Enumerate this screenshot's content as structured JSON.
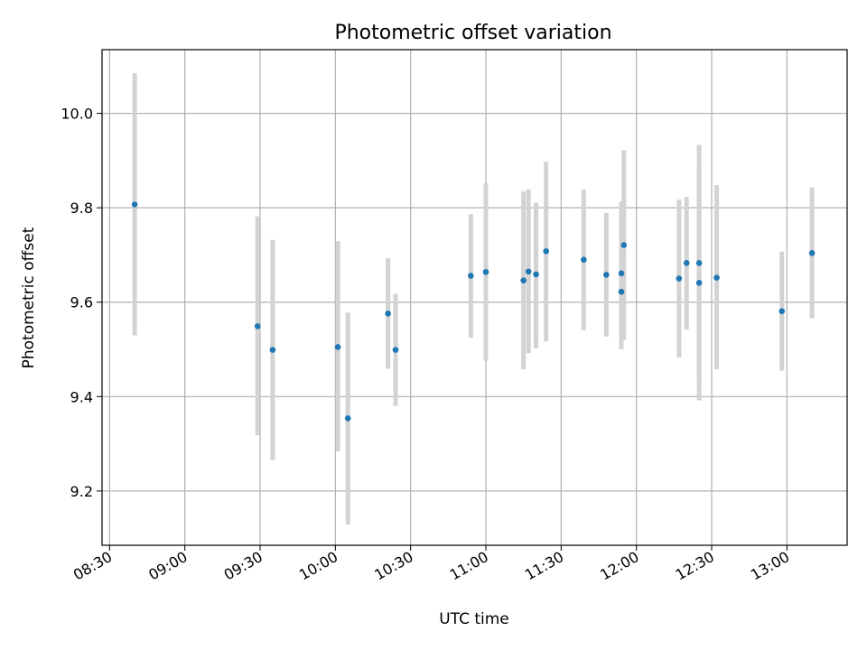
{
  "chart_data": {
    "type": "scatter",
    "title": "Photometric offset variation",
    "xlabel": "UTC time",
    "ylabel": "Photometric offset",
    "x_ticks": [
      "08:30",
      "09:00",
      "09:30",
      "10:00",
      "10:30",
      "11:00",
      "11:30",
      "12:00",
      "12:30",
      "13:00"
    ],
    "y_ticks": [
      "9.2",
      "9.4",
      "9.6",
      "9.8",
      "10.0"
    ],
    "xlim": [
      "08:27",
      "13:24"
    ],
    "ylim": [
      9.085,
      10.135
    ],
    "grid": true,
    "point_color": "#1f77b4",
    "errorbar_color": "#d3d3d3",
    "points": [
      {
        "x": "08:40",
        "y": 9.807,
        "lo": 9.53,
        "hi": 10.085
      },
      {
        "x": "09:29",
        "y": 9.549,
        "lo": 9.318,
        "hi": 9.782
      },
      {
        "x": "09:35",
        "y": 9.499,
        "lo": 9.265,
        "hi": 9.732
      },
      {
        "x": "10:01",
        "y": 9.505,
        "lo": 9.284,
        "hi": 9.729
      },
      {
        "x": "10:05",
        "y": 9.354,
        "lo": 9.129,
        "hi": 9.578
      },
      {
        "x": "10:21",
        "y": 9.576,
        "lo": 9.459,
        "hi": 9.693
      },
      {
        "x": "10:24",
        "y": 9.499,
        "lo": 9.38,
        "hi": 9.618
      },
      {
        "x": "10:54",
        "y": 9.656,
        "lo": 9.524,
        "hi": 9.787
      },
      {
        "x": "11:00",
        "y": 9.664,
        "lo": 9.476,
        "hi": 9.852
      },
      {
        "x": "11:15",
        "y": 9.646,
        "lo": 9.458,
        "hi": 9.835
      },
      {
        "x": "11:17",
        "y": 9.665,
        "lo": 9.492,
        "hi": 9.839
      },
      {
        "x": "11:20",
        "y": 9.659,
        "lo": 9.502,
        "hi": 9.811
      },
      {
        "x": "11:24",
        "y": 9.708,
        "lo": 9.517,
        "hi": 9.898
      },
      {
        "x": "11:39",
        "y": 9.69,
        "lo": 9.541,
        "hi": 9.838
      },
      {
        "x": "11:48",
        "y": 9.658,
        "lo": 9.527,
        "hi": 9.789
      },
      {
        "x": "11:54",
        "y": 9.622,
        "lo": 9.5,
        "hi": 9.745
      },
      {
        "x": "11:54",
        "y": 9.661,
        "lo": 9.512,
        "hi": 9.813
      },
      {
        "x": "11:55",
        "y": 9.721,
        "lo": 9.52,
        "hi": 9.922
      },
      {
        "x": "12:17",
        "y": 9.65,
        "lo": 9.483,
        "hi": 9.817
      },
      {
        "x": "12:20",
        "y": 9.683,
        "lo": 9.542,
        "hi": 9.823
      },
      {
        "x": "12:25",
        "y": 9.683,
        "lo": 9.432,
        "hi": 9.933
      },
      {
        "x": "12:25",
        "y": 9.641,
        "lo": 9.392,
        "hi": 9.89
      },
      {
        "x": "12:32",
        "y": 9.652,
        "lo": 9.458,
        "hi": 9.848
      },
      {
        "x": "12:58",
        "y": 9.581,
        "lo": 9.455,
        "hi": 9.707
      },
      {
        "x": "13:10",
        "y": 9.704,
        "lo": 9.566,
        "hi": 9.843
      }
    ]
  }
}
